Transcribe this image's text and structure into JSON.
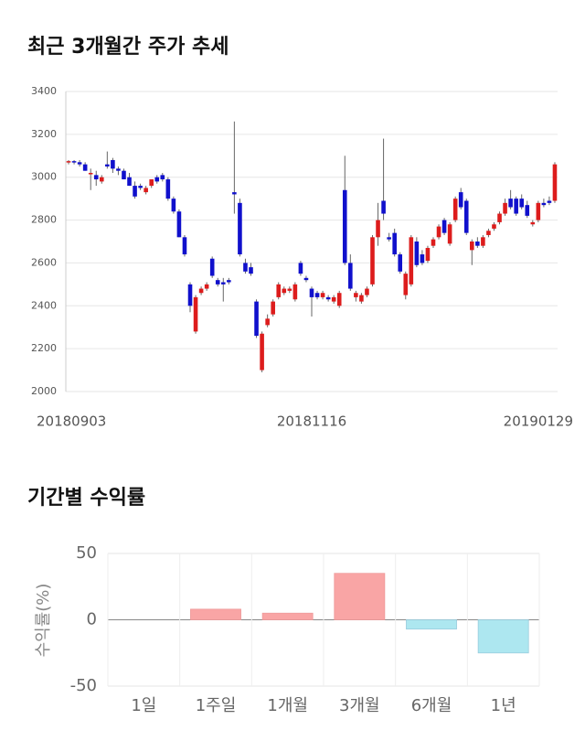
{
  "chart_data": [
    {
      "type": "candlestick",
      "title": "최근 3개월간 주가 추세",
      "categories": [
        "20180903",
        null,
        null,
        null,
        null,
        null,
        null,
        null,
        null,
        null,
        null,
        null,
        null,
        null,
        null,
        null,
        null,
        null,
        null,
        null,
        null,
        null,
        null,
        null,
        null,
        null,
        null,
        null,
        null,
        null,
        null,
        null,
        null,
        null,
        null,
        null,
        null,
        null,
        null,
        null,
        null,
        null,
        null,
        null,
        "20181116",
        null,
        null,
        null,
        null,
        null,
        null,
        null,
        null,
        null,
        null,
        null,
        null,
        null,
        null,
        null,
        null,
        null,
        null,
        null,
        null,
        null,
        null,
        null,
        null,
        null,
        null,
        null,
        null,
        null,
        null,
        null,
        null,
        null,
        null,
        null,
        null,
        null,
        null,
        null,
        null,
        "20190129",
        null,
        null,
        null
      ],
      "open": [
        3070,
        3075,
        3070,
        3060,
        3020,
        3010,
        2980,
        3060,
        3080,
        3040,
        3030,
        3000,
        2960,
        2960,
        2930,
        2960,
        3000,
        3010,
        2990,
        2900,
        2840,
        2720,
        2500,
        2280,
        2460,
        2480,
        2620,
        2520,
        2510,
        2520,
        2930,
        2880,
        2600,
        2580,
        2420,
        2100,
        2310,
        2360,
        2440,
        2460,
        2470,
        2430,
        2600,
        2530,
        2480,
        2460,
        2440,
        2440,
        2420,
        2400,
        2940,
        2600,
        2440,
        2420,
        2450,
        2500,
        2720,
        2890,
        2720,
        2740,
        2640,
        2450,
        2500,
        2700,
        2640,
        2610,
        2680,
        2720,
        2800,
        2690,
        2800,
        2930,
        2890,
        2660,
        2700,
        2680,
        2730,
        2760,
        2790,
        2830,
        2900,
        2900,
        2900,
        2870,
        2780,
        2800,
        2880,
        2890,
        2890
      ],
      "high": [
        3080,
        3080,
        3080,
        3070,
        3040,
        3030,
        3010,
        3120,
        3090,
        3050,
        3040,
        3020,
        2980,
        2970,
        2960,
        2990,
        3010,
        3020,
        3000,
        2910,
        2850,
        2730,
        2510,
        2450,
        2490,
        2510,
        2630,
        2530,
        2530,
        2530,
        3260,
        2900,
        2620,
        2600,
        2430,
        2280,
        2360,
        2430,
        2510,
        2490,
        2490,
        2510,
        2610,
        2540,
        2490,
        2470,
        2470,
        2450,
        2450,
        2470,
        3100,
        2640,
        2470,
        2460,
        2490,
        2730,
        2880,
        3180,
        2740,
        2760,
        2650,
        2560,
        2730,
        2720,
        2660,
        2680,
        2720,
        2780,
        2810,
        2790,
        2910,
        2950,
        2900,
        2710,
        2720,
        2730,
        2760,
        2790,
        2840,
        2900,
        2940,
        2910,
        2920,
        2890,
        2800,
        2890,
        2900,
        2910,
        3070
      ],
      "low": [
        3060,
        3060,
        3050,
        3030,
        2940,
        2960,
        2970,
        3040,
        3020,
        3010,
        2990,
        2960,
        2900,
        2940,
        2920,
        2950,
        2970,
        2980,
        2890,
        2830,
        2720,
        2630,
        2370,
        2270,
        2450,
        2470,
        2530,
        2490,
        2420,
        2500,
        2830,
        2630,
        2550,
        2540,
        2250,
        2090,
        2300,
        2350,
        2430,
        2450,
        2460,
        2420,
        2540,
        2510,
        2350,
        2430,
        2430,
        2420,
        2410,
        2390,
        2590,
        2470,
        2420,
        2410,
        2440,
        2490,
        2680,
        2800,
        2700,
        2630,
        2550,
        2430,
        2490,
        2580,
        2590,
        2600,
        2670,
        2710,
        2730,
        2680,
        2790,
        2850,
        2730,
        2590,
        2670,
        2670,
        2720,
        2750,
        2780,
        2820,
        2850,
        2820,
        2850,
        2810,
        2770,
        2790,
        2860,
        2870,
        2880
      ],
      "close": [
        3075,
        3070,
        3060,
        3030,
        3020,
        2990,
        3000,
        3050,
        3040,
        3030,
        2990,
        2960,
        2910,
        2950,
        2950,
        2990,
        2980,
        2990,
        2900,
        2840,
        2720,
        2640,
        2400,
        2440,
        2480,
        2500,
        2540,
        2500,
        2500,
        2510,
        2920,
        2640,
        2560,
        2550,
        2260,
        2270,
        2340,
        2420,
        2500,
        2480,
        2480,
        2500,
        2550,
        2520,
        2440,
        2440,
        2460,
        2430,
        2440,
        2460,
        2600,
        2480,
        2460,
        2450,
        2480,
        2720,
        2800,
        2830,
        2710,
        2640,
        2560,
        2550,
        2720,
        2590,
        2600,
        2670,
        2710,
        2770,
        2740,
        2780,
        2900,
        2860,
        2740,
        2700,
        2680,
        2720,
        2750,
        2780,
        2830,
        2880,
        2860,
        2830,
        2860,
        2820,
        2790,
        2880,
        2870,
        2880,
        3060
      ],
      "up_color": "#dd1c1c",
      "down_color": "#1010cc",
      "ylim": [
        2000,
        3400
      ],
      "yticks": [
        2000,
        2200,
        2400,
        2600,
        2800,
        3000,
        3200,
        3400
      ],
      "grid": true
    },
    {
      "type": "bar",
      "title": "기간별 수익률",
      "ylabel": "수익률(%)",
      "categories": [
        "1일",
        "1주일",
        "1개월",
        "3개월",
        "6개월",
        "1년"
      ],
      "values": [
        0,
        8,
        5,
        35,
        -7,
        -25
      ],
      "positive_color": "#f9a5a5",
      "negative_color": "#ade7f0",
      "ylim": [
        -50,
        50
      ],
      "yticks": [
        -50,
        0,
        50
      ],
      "grid": true
    }
  ]
}
